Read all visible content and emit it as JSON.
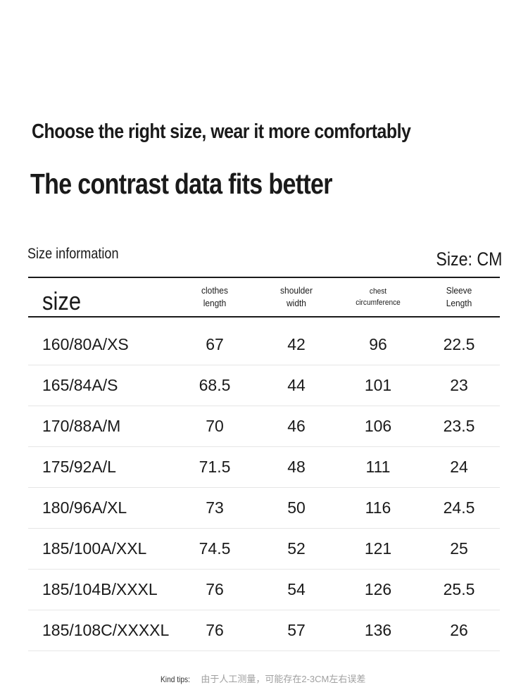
{
  "headline": {
    "line1": "Choose the right size, wear it more comfortably",
    "line2": "The contrast data fits better"
  },
  "table_meta": {
    "section_label": "Size information",
    "unit_label": "Size: CM"
  },
  "columns": {
    "size": "size",
    "clothes_length": [
      "clothes",
      "length"
    ],
    "shoulder_width": [
      "shoulder",
      "width"
    ],
    "chest_circumference": [
      "chest",
      "circumference"
    ],
    "sleeve_length": [
      "Sleeve",
      "Length"
    ]
  },
  "rows": [
    {
      "size": "160/80A/XS",
      "clothes_length": "67",
      "shoulder_width": "42",
      "chest": "96",
      "sleeve": "22.5"
    },
    {
      "size": "165/84A/S",
      "clothes_length": "68.5",
      "shoulder_width": "44",
      "chest": "101",
      "sleeve": "23"
    },
    {
      "size": "170/88A/M",
      "clothes_length": "70",
      "shoulder_width": "46",
      "chest": "106",
      "sleeve": "23.5"
    },
    {
      "size": "175/92A/L",
      "clothes_length": "71.5",
      "shoulder_width": "48",
      "chest": "111",
      "sleeve": "24"
    },
    {
      "size": "180/96A/XL",
      "clothes_length": "73",
      "shoulder_width": "50",
      "chest": "116",
      "sleeve": "24.5"
    },
    {
      "size": "185/100A/XXL",
      "clothes_length": "74.5",
      "shoulder_width": "52",
      "chest": "121",
      "sleeve": "25"
    },
    {
      "size": "185/104B/XXXL",
      "clothes_length": "76",
      "shoulder_width": "54",
      "chest": "126",
      "sleeve": "25.5"
    },
    {
      "size": "185/108C/XXXXL",
      "clothes_length": "76",
      "shoulder_width": "57",
      "chest": "136",
      "sleeve": "26"
    }
  ],
  "tips": {
    "label": "Kind tips:",
    "text": "由于人工测量，可能存在2-3CM左右误差"
  }
}
